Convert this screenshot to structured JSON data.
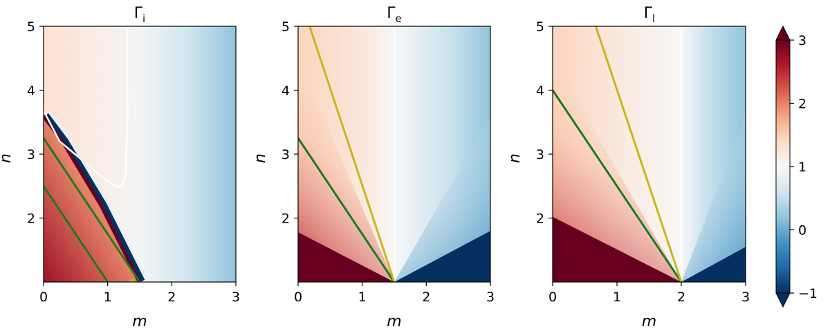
{
  "chart_data": {
    "type": "heatmap",
    "x_range": [
      0,
      3
    ],
    "y_range": [
      1,
      5
    ],
    "xticks": [
      "0",
      "1",
      "2",
      "3"
    ],
    "yticks": [
      "2",
      "3",
      "4",
      "5"
    ],
    "xlabel": "m",
    "ylabel": "n",
    "colorbar": {
      "range": [
        -1,
        3
      ],
      "ticks": [
        "−1",
        "0",
        "1",
        "2",
        "3"
      ],
      "colormap": "RdBu_r",
      "extend": "both",
      "colors": {
        "low": "#053061",
        "mid": "#f7f7f7",
        "high": "#67001f"
      }
    },
    "line_colors": {
      "green": "#1e7a1e",
      "yellow": "#c8b818",
      "contour": "#ffffff"
    },
    "panels": [
      {
        "title_base": "Γ",
        "title_sub": "i",
        "lines": [
          {
            "color": "green",
            "points": [
              [
                0,
                3.25
              ],
              [
                1.5,
                1.0
              ]
            ]
          },
          {
            "color": "green",
            "points": [
              [
                0,
                2.5
              ],
              [
                1.0,
                1.0
              ]
            ]
          }
        ],
        "contour": [
          [
            1.3,
            5.0
          ],
          [
            1.31,
            3.6
          ],
          [
            1.28,
            2.7
          ],
          [
            1.22,
            2.48
          ],
          [
            1.12,
            2.5
          ],
          [
            0.9,
            2.65
          ],
          [
            0.55,
            2.95
          ],
          [
            0.25,
            3.2
          ],
          [
            0.0,
            3.68
          ]
        ],
        "singular_curve": [
          [
            0,
            3.6
          ],
          [
            0.3,
            3.2
          ],
          [
            0.6,
            2.7
          ],
          [
            0.9,
            2.2
          ],
          [
            1.2,
            1.6
          ],
          [
            1.4,
            1.2
          ],
          [
            1.5,
            1.0
          ]
        ],
        "marker": [
          1.38,
          1.0
        ]
      },
      {
        "title_base": "Γ",
        "title_sub": "e",
        "lines": [
          {
            "color": "green",
            "points": [
              [
                0,
                3.25
              ],
              [
                1.5,
                1.0
              ]
            ]
          },
          {
            "color": "yellow",
            "points": [
              [
                0.18,
                5.0
              ],
              [
                1.5,
                1.0
              ]
            ]
          }
        ],
        "contour_vertical_m": 1.5,
        "saturation_high": [
          [
            0,
            1.78
          ],
          [
            1.5,
            1.0
          ],
          [
            0,
            1.0
          ]
        ],
        "saturation_low": [
          [
            1.5,
            1.0
          ],
          [
            3.0,
            1.8
          ],
          [
            3.0,
            1.0
          ]
        ]
      },
      {
        "title_base": "Γ",
        "title_sub": "l",
        "lines": [
          {
            "color": "green",
            "points": [
              [
                0,
                4.0
              ],
              [
                2.0,
                1.0
              ]
            ]
          },
          {
            "color": "yellow",
            "points": [
              [
                0.67,
                5.0
              ],
              [
                2.0,
                1.0
              ]
            ]
          }
        ],
        "contour_vertical_m": 2.0,
        "saturation_high": [
          [
            0,
            2.02
          ],
          [
            2.0,
            1.0
          ],
          [
            0,
            1.0
          ]
        ],
        "saturation_low": [
          [
            2.0,
            1.0
          ],
          [
            3.0,
            1.55
          ],
          [
            3.0,
            1.0
          ]
        ]
      }
    ]
  }
}
